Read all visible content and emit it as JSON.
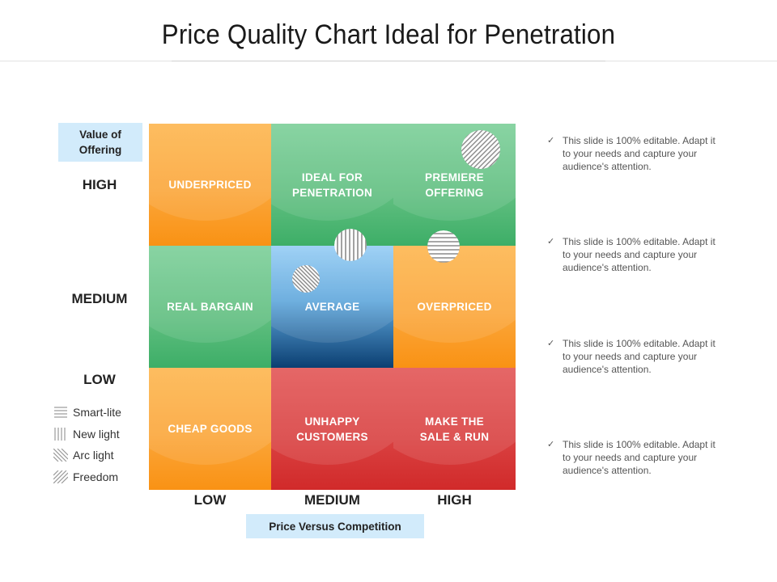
{
  "title": "Price Quality Chart Ideal for Penetration",
  "y_axis": {
    "title": "Value of Offering",
    "levels": [
      "HIGH",
      "MEDIUM",
      "LOW"
    ]
  },
  "x_axis": {
    "title": "Price Versus Competition",
    "levels": [
      "LOW",
      "MEDIUM",
      "HIGH"
    ]
  },
  "cells": [
    [
      "UNDERPRICED",
      "IDEAL FOR PENETRATION",
      "PREMIERE OFFERING"
    ],
    [
      "REAL BARGAIN",
      "AVERAGE",
      "OVERPRICED"
    ],
    [
      "CHEAP GOODS",
      "UNHAPPY CUSTOMERS",
      "MAKE THE SALE & RUN"
    ]
  ],
  "legend": [
    {
      "label": "Smart-lite",
      "pattern": "horizontal-lines"
    },
    {
      "label": "New light",
      "pattern": "vertical-lines"
    },
    {
      "label": "Arc light",
      "pattern": "diagonal-lines-down"
    },
    {
      "label": "Freedom",
      "pattern": "diagonal-lines-up"
    }
  ],
  "notes": [
    "This slide is 100% editable. Adapt it to your needs and capture your audience's attention.",
    "This slide is 100% editable. Adapt it to your needs and capture your audience's attention.",
    "This slide is 100% editable. Adapt it to your needs and capture your audience's attention.",
    "This slide is 100% editable. Adapt it to your needs and capture your audience's attention."
  ],
  "colors": {
    "axis_box": "#d2ebfb",
    "orange": "#fba63a",
    "green": "#5fbe7f",
    "red": "#d94040",
    "blue": "#5fa7dc"
  }
}
